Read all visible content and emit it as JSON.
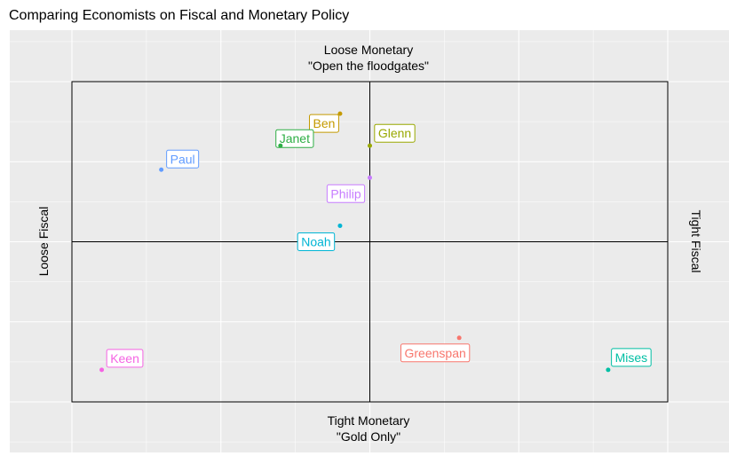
{
  "title": "Comparing Economists on Fiscal and Monetary Policy",
  "chart_data": {
    "type": "scatter",
    "title": "Comparing Economists on Fiscal and Monetary Policy",
    "axis_labels": {
      "top_line1": "Loose Monetary",
      "top_line2": "\"Open the floodgates\"",
      "bottom_line1": "Tight Monetary",
      "bottom_line2": "\"Gold Only\"",
      "left": "Loose Fiscal",
      "right": "Tight Fiscal"
    },
    "xlim": [
      -10,
      10
    ],
    "ylim": [
      -10,
      10
    ],
    "grid": true,
    "points": [
      {
        "name": "Ben",
        "x": -1.0,
        "y": 8.0,
        "color": "#C49A00"
      },
      {
        "name": "Janet",
        "x": -3.0,
        "y": 6.0,
        "color": "#2EAE45"
      },
      {
        "name": "Glenn",
        "x": 0.0,
        "y": 6.0,
        "color": "#99A800"
      },
      {
        "name": "Paul",
        "x": -7.0,
        "y": 4.5,
        "color": "#619CFF"
      },
      {
        "name": "Philip",
        "x": 0.0,
        "y": 4.0,
        "color": "#C77CFF"
      },
      {
        "name": "Noah",
        "x": -1.0,
        "y": 1.0,
        "color": "#00B5D4"
      },
      {
        "name": "Keen",
        "x": -9.0,
        "y": -8.0,
        "color": "#F564E3"
      },
      {
        "name": "Greenspan",
        "x": 3.0,
        "y": -6.0,
        "color": "#F8766D"
      },
      {
        "name": "Mises",
        "x": 8.0,
        "y": -8.0,
        "color": "#00BFA4"
      }
    ]
  }
}
